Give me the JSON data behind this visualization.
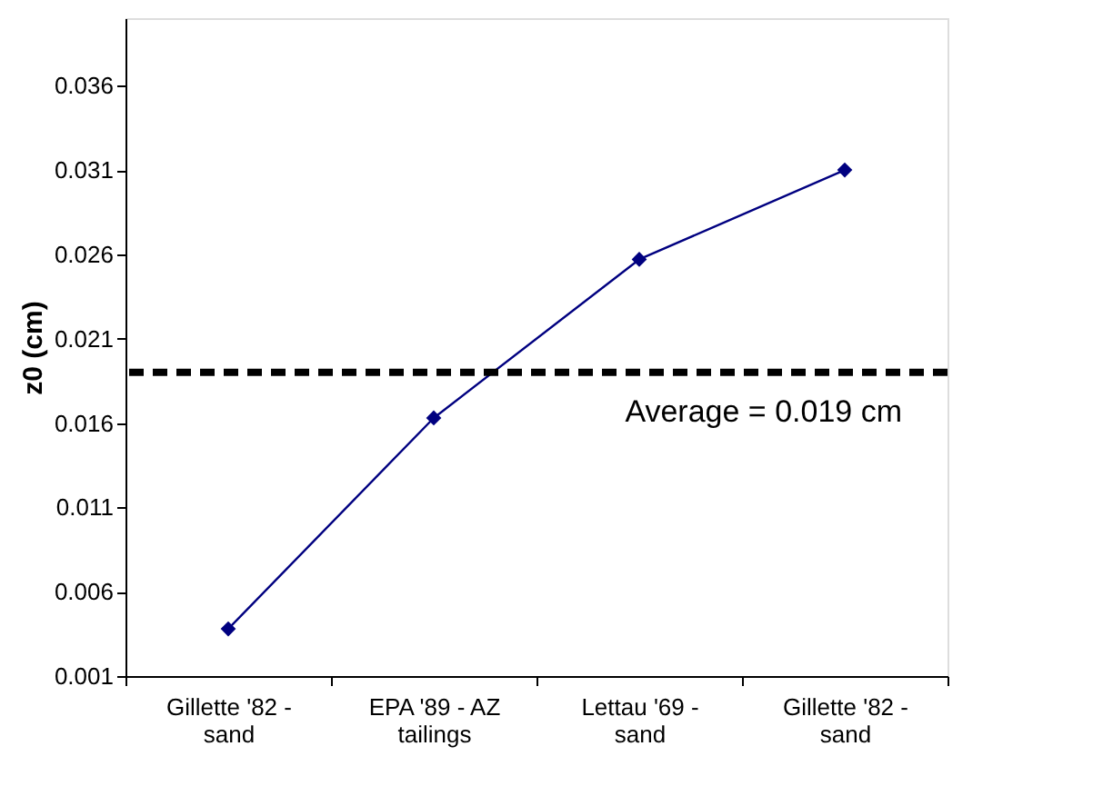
{
  "chart_data": {
    "type": "line",
    "ylabel": "z0 (cm)",
    "categories": [
      "Gillette '82 - sand",
      "EPA '89 - AZ tailings",
      "Lettau '69 - sand",
      "Gillette '82 - sand"
    ],
    "series": [
      {
        "color": "#000080",
        "values": [
          0.0038,
          0.0163,
          0.0257,
          0.031
        ]
      }
    ],
    "ylim": [
      0.001,
      0.04
    ],
    "yticks": [
      0.001,
      0.006,
      0.011,
      0.016,
      0.021,
      0.026,
      0.031,
      0.036
    ],
    "ref_lines": [
      {
        "axis": "y",
        "value": 0.019,
        "label": "Average = 0.019 cm",
        "color": "#000000",
        "line_style": "dashed"
      }
    ],
    "marker": "diamond",
    "line_style": "solid",
    "grid": false
  }
}
